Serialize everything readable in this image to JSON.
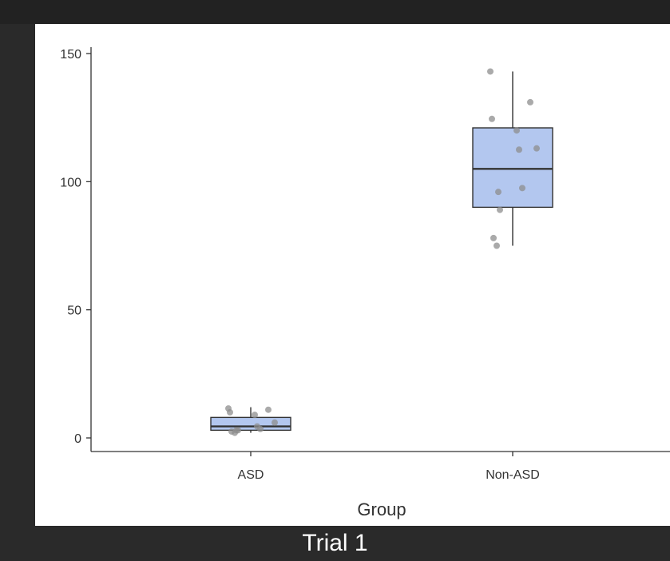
{
  "caption": "Trial 1",
  "colors": {
    "box_fill": "#b3c7ef",
    "box_stroke": "#333333",
    "point": "#8e8e8e"
  },
  "chart_data": {
    "type": "boxplot",
    "xlabel": "Group",
    "ylabel": "",
    "ylim": [
      -5,
      152
    ],
    "yticks": [
      0,
      50,
      100,
      150
    ],
    "categories": [
      "ASD",
      "Non-ASD"
    ],
    "boxes": [
      {
        "name": "ASD",
        "whisker_low": 2,
        "q1": 3,
        "median": 4.5,
        "q3": 8,
        "whisker_high": 12,
        "points": [
          11.5,
          11,
          10,
          9,
          6,
          4.5,
          3.5,
          3,
          3,
          2.5,
          2
        ]
      },
      {
        "name": "Non-ASD",
        "whisker_low": 75,
        "q1": 90,
        "median": 105,
        "q3": 121,
        "whisker_high": 143,
        "points": [
          143,
          131,
          124.5,
          120,
          113,
          112.5,
          97.5,
          96,
          89,
          78,
          75
        ]
      }
    ],
    "grid": false,
    "legend": "none"
  }
}
